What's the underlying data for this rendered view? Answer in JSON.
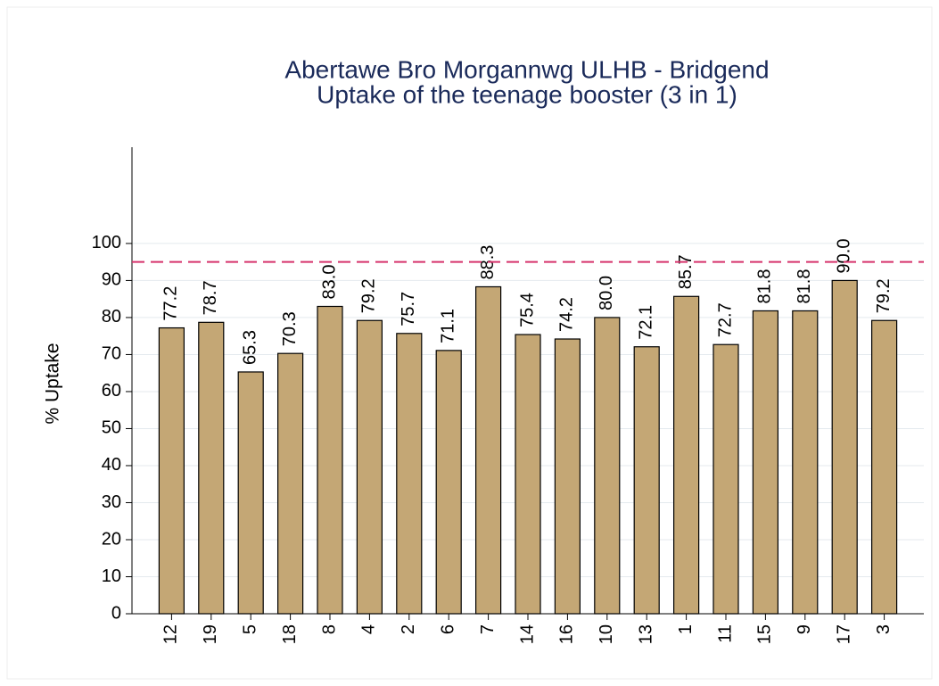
{
  "chart_data": {
    "type": "bar",
    "title": "Abertawe Bro Morgannwg ULHB - Bridgend",
    "subtitle": "Uptake of the teenage booster (3 in 1)",
    "y_label": "% Uptake",
    "categories": [
      "12",
      "19",
      "5",
      "18",
      "8",
      "4",
      "2",
      "6",
      "7",
      "14",
      "16",
      "10",
      "13",
      "1",
      "11",
      "15",
      "9",
      "17",
      "3"
    ],
    "values": [
      77.2,
      78.7,
      65.3,
      70.3,
      83.0,
      79.2,
      75.7,
      71.1,
      88.3,
      75.4,
      74.2,
      80.0,
      72.1,
      85.7,
      72.7,
      81.8,
      81.8,
      90.0,
      79.2
    ],
    "value_labels": [
      "77.2",
      "78.7",
      "65.3",
      "70.3",
      "83.0",
      "79.2",
      "75.7",
      "71.1",
      "88.3",
      "75.4",
      "74.2",
      "80.0",
      "72.1",
      "85.7",
      "72.7",
      "81.8",
      "81.8",
      "90.0",
      "79.2"
    ],
    "color": "#c4a775",
    "reference_line": 95,
    "reference_color": "#d6336c",
    "ylim": [
      0,
      126
    ],
    "yticks": [
      0,
      10,
      20,
      30,
      40,
      50,
      60,
      70,
      80,
      90,
      100
    ],
    "grid": true
  }
}
